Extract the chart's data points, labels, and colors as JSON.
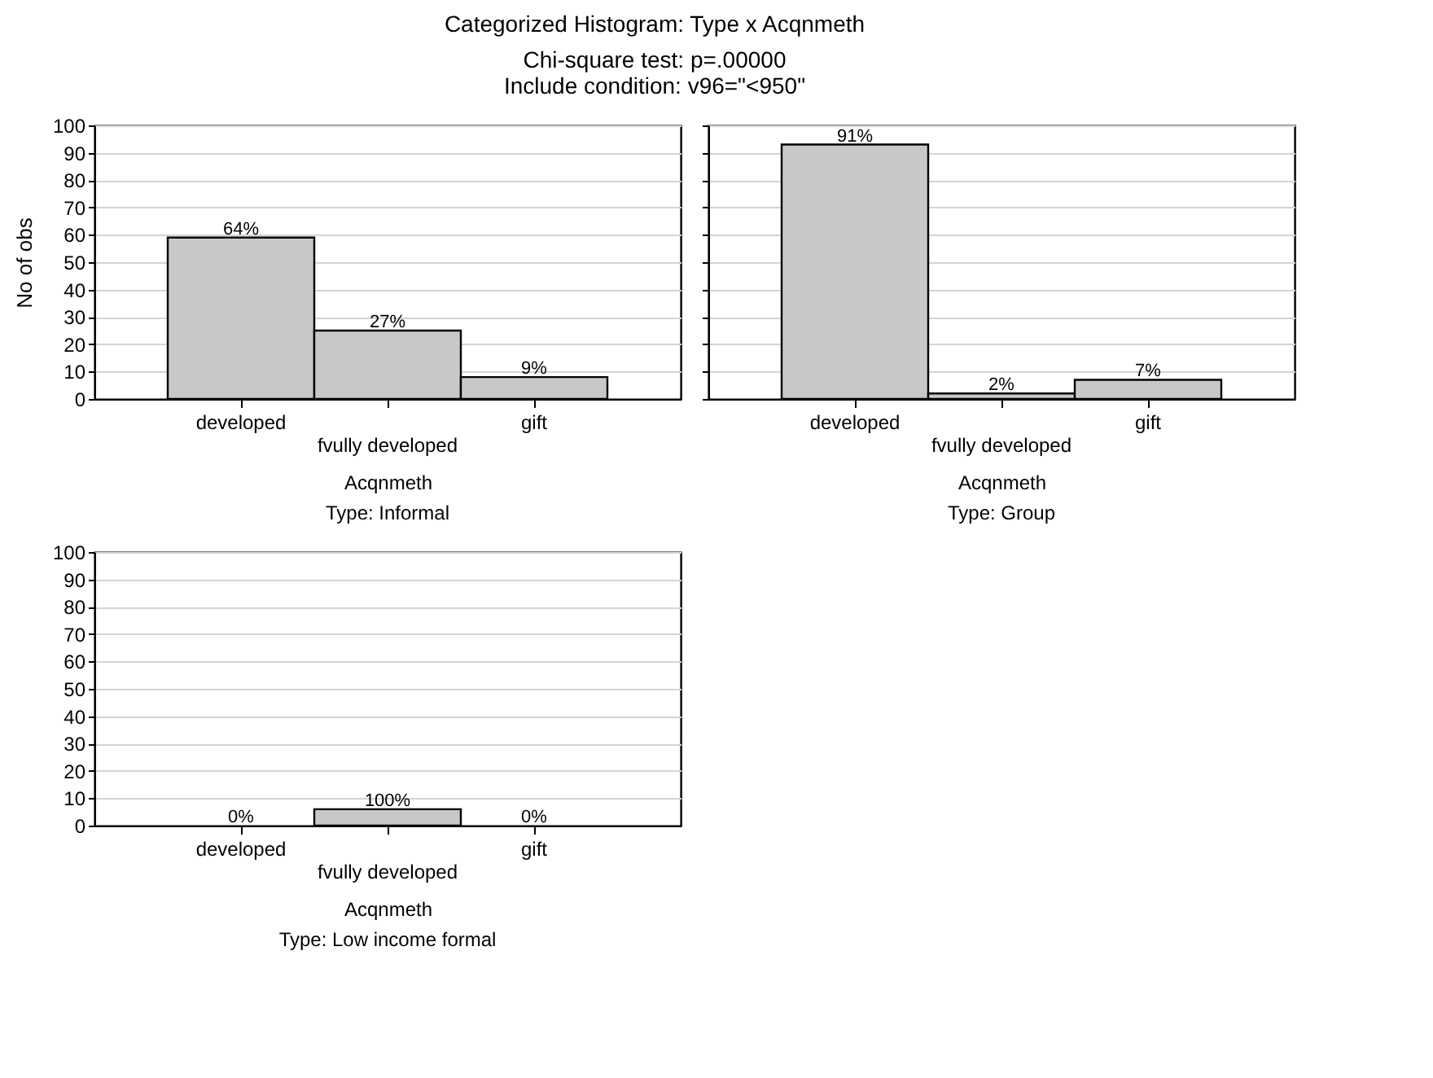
{
  "chart_data": [
    {
      "type": "bar",
      "title": "Categorized Histogram: Type x Acqnmeth",
      "subtitle": "Type: Informal",
      "ylabel": "No of obs",
      "xlabel": "Acqnmeth",
      "categories": [
        "developed",
        "fvully developed",
        "gift"
      ],
      "values": [
        59,
        25,
        8
      ],
      "color": "#c8c8c8",
      "ylim": [
        0,
        100
      ],
      "yticks": [
        0,
        10,
        20,
        30,
        40,
        50,
        60,
        70,
        80,
        90,
        100
      ],
      "grid": "y",
      "annotations": [
        "Chi-square test: p=.00000",
        "Include condition: v96=\"<950\"",
        {
          "text": "64%",
          "x": "developed",
          "y": 59
        },
        {
          "text": "27%",
          "x": "fvully developed",
          "y": 25
        },
        {
          "text": "9%",
          "x": "gift",
          "y": 8
        }
      ]
    },
    {
      "type": "bar",
      "xlabel": "Acqnmeth",
      "subtitle": "Type: Group",
      "categories": [
        "developed",
        "fvully developed",
        "gift"
      ],
      "values": [
        93,
        2,
        7
      ],
      "color": "#c8c8c8",
      "ylim": [
        0,
        100
      ],
      "yticks": [
        0,
        10,
        20,
        30,
        40,
        50,
        60,
        70,
        80,
        90,
        100
      ],
      "grid": "y",
      "tick_labels": "x",
      "annotations": [
        {
          "text": "91%",
          "x": "developed",
          "y": 93
        },
        {
          "text": "2%",
          "x": "fvully developed",
          "y": 2
        },
        {
          "text": "7%",
          "x": "gift",
          "y": 7
        }
      ]
    },
    {
      "type": "bar",
      "xlabel": "Acqnmeth",
      "subtitle": "Type: Low income formal",
      "categories": [
        "developed",
        "fvully developed",
        "gift"
      ],
      "values": [
        0,
        6,
        0
      ],
      "color": "#c8c8c8",
      "ylim": [
        0,
        100
      ],
      "yticks": [
        0,
        10,
        20,
        30,
        40,
        50,
        60,
        70,
        80,
        90,
        100
      ],
      "grid": "y",
      "annotations": [
        {
          "text": "0%",
          "x": "developed",
          "y": 0
        },
        {
          "text": "100%",
          "x": "fvully developed",
          "y": 6
        },
        {
          "text": "0%",
          "x": "gift",
          "y": 0
        }
      ]
    }
  ]
}
